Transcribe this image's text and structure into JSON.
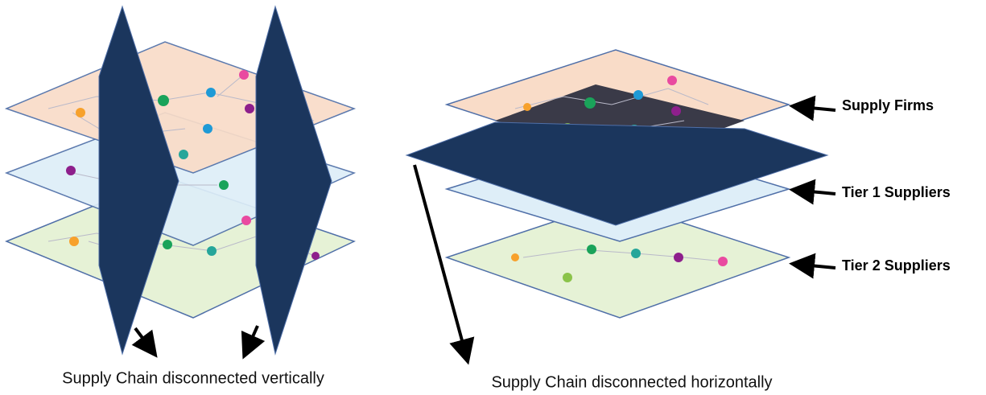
{
  "left_panel": {
    "caption": "Supply Chain disconnected vertically"
  },
  "right_panel": {
    "layers": [
      "Supply Firms",
      "Tier 1 Suppliers",
      "Tier 2 Suppliers"
    ],
    "caption": "Supply Chain disconnected horizontally"
  }
}
